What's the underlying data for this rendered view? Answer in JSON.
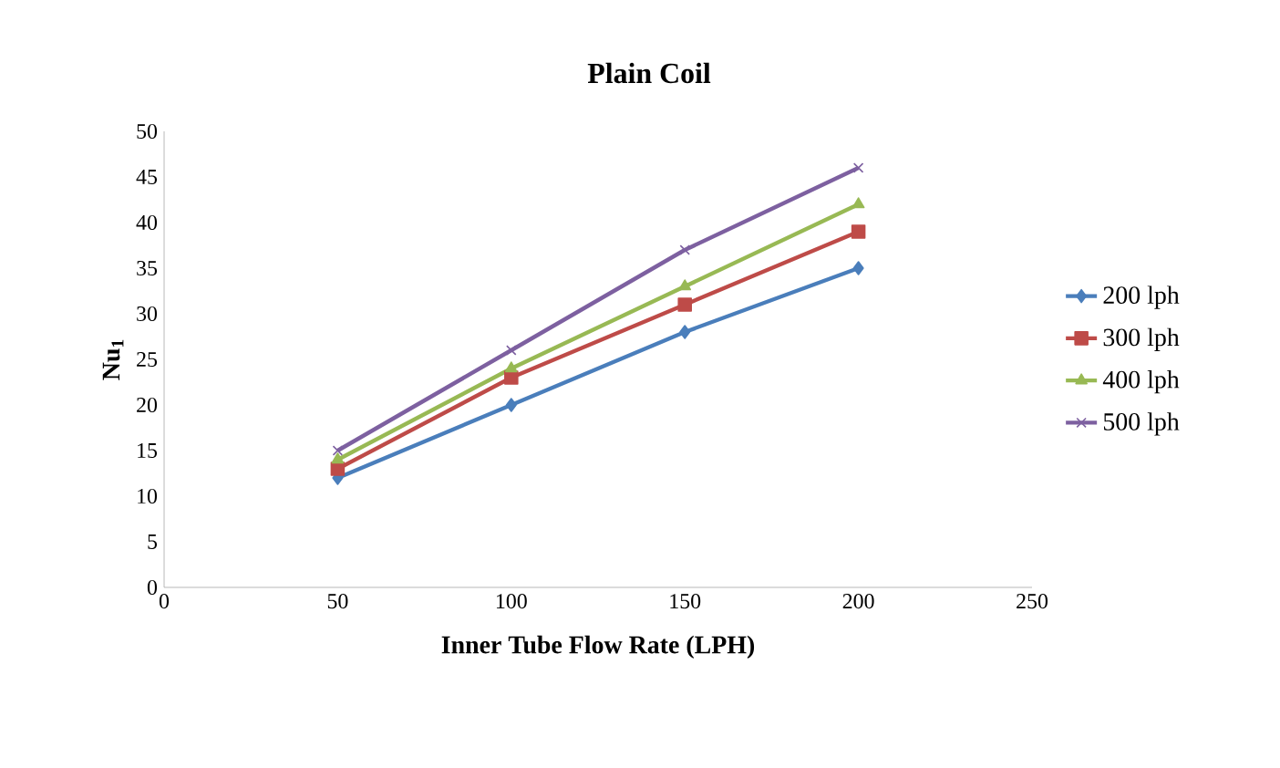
{
  "chart_data": {
    "type": "line",
    "title": "Plain Coil",
    "xlabel": "Inner Tube Flow Rate (LPH)",
    "ylabel": "Nu$_{1}$",
    "x": [
      50,
      100,
      150,
      200
    ],
    "series": [
      {
        "name": "200 lph",
        "color": "#4a7ebb",
        "marker": "diamond",
        "values": [
          12,
          20,
          28,
          35
        ]
      },
      {
        "name": "300 lph",
        "color": "#be4b48",
        "marker": "square",
        "values": [
          13,
          23,
          31,
          39
        ]
      },
      {
        "name": "400 lph",
        "color": "#98b954",
        "marker": "triangle",
        "values": [
          14,
          24,
          33,
          42
        ]
      },
      {
        "name": "500 lph",
        "color": "#7d60a0",
        "marker": "cross",
        "values": [
          15,
          26,
          37,
          46
        ]
      }
    ],
    "xlim": [
      0,
      250
    ],
    "xticks": [
      0,
      50,
      100,
      150,
      200,
      250
    ],
    "ylim": [
      0,
      50
    ],
    "yticks": [
      0,
      5,
      10,
      15,
      20,
      25,
      30,
      35,
      40,
      45,
      50
    ],
    "grid": false,
    "legend": "right",
    "line_style": "solid"
  }
}
